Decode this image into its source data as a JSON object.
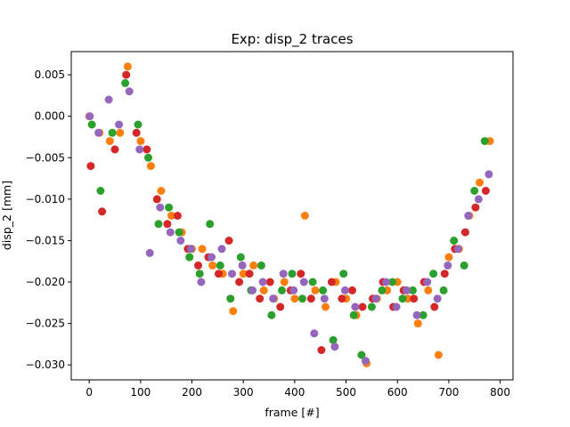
{
  "chart_data": {
    "type": "scatter",
    "title": "Exp: disp_2 traces",
    "xlabel": "frame [#]",
    "ylabel": "disp_2 [mm]",
    "xlim": [
      -35,
      825
    ],
    "ylim": [
      -0.0318,
      0.0078
    ],
    "x_ticks": [
      0,
      100,
      200,
      300,
      400,
      500,
      600,
      700,
      800
    ],
    "x_tick_labels": [
      "0",
      "100",
      "200",
      "300",
      "400",
      "500",
      "600",
      "700",
      "800"
    ],
    "y_ticks": [
      0.005,
      0.0,
      -0.005,
      -0.01,
      -0.015,
      -0.02,
      -0.025,
      -0.03
    ],
    "y_tick_labels": [
      "0.005",
      "0.000",
      "−0.005",
      "−0.010",
      "−0.015",
      "−0.020",
      "−0.025",
      "−0.030"
    ],
    "grid": false,
    "legend": "none",
    "series": [
      {
        "color": "#ff7f0e",
        "values": [
          [
            0,
            0.0
          ],
          [
            20,
            -0.002
          ],
          [
            40,
            -0.003
          ],
          [
            60,
            -0.002
          ],
          [
            75,
            0.006
          ],
          [
            100,
            -0.003
          ],
          [
            120,
            -0.006
          ],
          [
            140,
            -0.009
          ],
          [
            160,
            -0.012
          ],
          [
            180,
            -0.014
          ],
          [
            200,
            -0.016
          ],
          [
            220,
            -0.016
          ],
          [
            240,
            -0.018
          ],
          [
            260,
            -0.019
          ],
          [
            280,
            -0.0235
          ],
          [
            300,
            -0.019
          ],
          [
            320,
            -0.018
          ],
          [
            340,
            -0.021
          ],
          [
            360,
            -0.022
          ],
          [
            380,
            -0.02
          ],
          [
            400,
            -0.022
          ],
          [
            420,
            -0.012
          ],
          [
            440,
            -0.021
          ],
          [
            460,
            -0.023
          ],
          [
            480,
            -0.02
          ],
          [
            500,
            -0.022
          ],
          [
            520,
            -0.024
          ],
          [
            540,
            -0.0298
          ],
          [
            560,
            -0.022
          ],
          [
            580,
            -0.021
          ],
          [
            600,
            -0.02
          ],
          [
            620,
            -0.022
          ],
          [
            640,
            -0.025
          ],
          [
            660,
            -0.021
          ],
          [
            680,
            -0.0288
          ],
          [
            700,
            -0.017
          ],
          [
            720,
            -0.016
          ],
          [
            740,
            -0.012
          ],
          [
            760,
            -0.008
          ],
          [
            780,
            -0.003
          ]
        ]
      },
      {
        "color": "#2ca02c",
        "values": [
          [
            5,
            -0.001
          ],
          [
            22,
            -0.009
          ],
          [
            45,
            -0.002
          ],
          [
            70,
            0.004
          ],
          [
            95,
            -0.001
          ],
          [
            115,
            -0.005
          ],
          [
            135,
            -0.013
          ],
          [
            155,
            -0.011
          ],
          [
            175,
            -0.014
          ],
          [
            195,
            -0.017
          ],
          [
            215,
            -0.019
          ],
          [
            235,
            -0.013
          ],
          [
            255,
            -0.018
          ],
          [
            275,
            -0.022
          ],
          [
            295,
            -0.017
          ],
          [
            315,
            -0.021
          ],
          [
            335,
            -0.018
          ],
          [
            355,
            -0.024
          ],
          [
            375,
            -0.021
          ],
          [
            395,
            -0.019
          ],
          [
            415,
            -0.022
          ],
          [
            435,
            -0.02
          ],
          [
            455,
            -0.021
          ],
          [
            475,
            -0.027
          ],
          [
            495,
            -0.019
          ],
          [
            515,
            -0.024
          ],
          [
            530,
            -0.0288
          ],
          [
            550,
            -0.023
          ],
          [
            570,
            -0.021
          ],
          [
            590,
            -0.02
          ],
          [
            610,
            -0.022
          ],
          [
            630,
            -0.021
          ],
          [
            650,
            -0.024
          ],
          [
            670,
            -0.019
          ],
          [
            690,
            -0.021
          ],
          [
            710,
            -0.015
          ],
          [
            730,
            -0.018
          ],
          [
            750,
            -0.009
          ],
          [
            770,
            -0.003
          ]
        ]
      },
      {
        "color": "#d62728",
        "values": [
          [
            3,
            -0.006
          ],
          [
            25,
            -0.0115
          ],
          [
            50,
            -0.004
          ],
          [
            72,
            0.005
          ],
          [
            92,
            -0.002
          ],
          [
            112,
            -0.004
          ],
          [
            132,
            -0.01
          ],
          [
            152,
            -0.013
          ],
          [
            172,
            -0.012
          ],
          [
            192,
            -0.016
          ],
          [
            212,
            -0.018
          ],
          [
            232,
            -0.017
          ],
          [
            252,
            -0.019
          ],
          [
            272,
            -0.015
          ],
          [
            292,
            -0.02
          ],
          [
            312,
            -0.019
          ],
          [
            332,
            -0.022
          ],
          [
            352,
            -0.02
          ],
          [
            372,
            -0.023
          ],
          [
            392,
            -0.021
          ],
          [
            412,
            -0.019
          ],
          [
            432,
            -0.022
          ],
          [
            452,
            -0.0282
          ],
          [
            472,
            -0.02
          ],
          [
            492,
            -0.022
          ],
          [
            512,
            -0.021
          ],
          [
            532,
            -0.023
          ],
          [
            552,
            -0.022
          ],
          [
            572,
            -0.02
          ],
          [
            592,
            -0.023
          ],
          [
            612,
            -0.021
          ],
          [
            632,
            -0.022
          ],
          [
            652,
            -0.02
          ],
          [
            672,
            -0.023
          ],
          [
            692,
            -0.019
          ],
          [
            712,
            -0.016
          ],
          [
            732,
            -0.014
          ],
          [
            752,
            -0.011
          ],
          [
            772,
            -0.009
          ]
        ]
      },
      {
        "color": "#9467bd",
        "values": [
          [
            1,
            0.0
          ],
          [
            18,
            -0.002
          ],
          [
            38,
            0.002
          ],
          [
            58,
            -0.001
          ],
          [
            78,
            0.003
          ],
          [
            98,
            -0.004
          ],
          [
            118,
            -0.0165
          ],
          [
            138,
            -0.011
          ],
          [
            158,
            -0.014
          ],
          [
            178,
            -0.015
          ],
          [
            198,
            -0.016
          ],
          [
            218,
            -0.02
          ],
          [
            238,
            -0.017
          ],
          [
            258,
            -0.016
          ],
          [
            278,
            -0.019
          ],
          [
            298,
            -0.018
          ],
          [
            318,
            -0.021
          ],
          [
            338,
            -0.02
          ],
          [
            358,
            -0.022
          ],
          [
            378,
            -0.019
          ],
          [
            398,
            -0.021
          ],
          [
            418,
            -0.02
          ],
          [
            438,
            -0.0262
          ],
          [
            458,
            -0.022
          ],
          [
            478,
            -0.0278
          ],
          [
            498,
            -0.021
          ],
          [
            518,
            -0.023
          ],
          [
            538,
            -0.0295
          ],
          [
            558,
            -0.022
          ],
          [
            578,
            -0.02
          ],
          [
            598,
            -0.023
          ],
          [
            618,
            -0.021
          ],
          [
            638,
            -0.024
          ],
          [
            658,
            -0.02
          ],
          [
            678,
            -0.022
          ],
          [
            698,
            -0.018
          ],
          [
            718,
            -0.016
          ],
          [
            738,
            -0.012
          ],
          [
            758,
            -0.01
          ],
          [
            778,
            -0.007
          ]
        ]
      }
    ]
  }
}
